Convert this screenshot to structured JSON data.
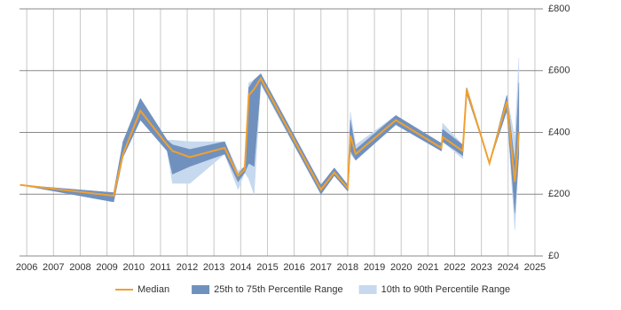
{
  "chart_data": {
    "type": "band-line",
    "x": [
      2005.75,
      2009.25,
      2009.6,
      2010.25,
      2011.25,
      2011.45,
      2012.1,
      2013.4,
      2013.9,
      2014.15,
      2014.3,
      2014.5,
      2014.75,
      2017.0,
      2017.5,
      2018.0,
      2018.1,
      2018.3,
      2019.8,
      2021.5,
      2021.55,
      2022.3,
      2022.45,
      2023.3,
      2023.95,
      2024.25,
      2024.4
    ],
    "series": [
      {
        "name": "Median",
        "color": "#f0a030",
        "values": [
          230,
          195,
          330,
          470,
          360,
          340,
          320,
          350,
          260,
          280,
          520,
          540,
          575,
          215,
          270,
          220,
          390,
          330,
          440,
          350,
          385,
          340,
          540,
          300,
          500,
          240,
          400
        ]
      }
    ],
    "bands": [
      {
        "name": "10th to 90th Percentile Range",
        "color": "#c6d9ee",
        "lower": [
          230,
          175,
          320,
          440,
          340,
          235,
          235,
          330,
          215,
          270,
          250,
          200,
          555,
          200,
          260,
          210,
          330,
          310,
          425,
          340,
          370,
          315,
          525,
          300,
          470,
          85,
          330
        ],
        "upper": [
          230,
          205,
          370,
          510,
          375,
          375,
          370,
          370,
          275,
          290,
          560,
          570,
          590,
          230,
          285,
          230,
          465,
          360,
          455,
          365,
          430,
          360,
          545,
          300,
          520,
          380,
          640
        ]
      },
      {
        "name": "25th to 75th Percentile Range",
        "color": "#7091be",
        "lower": [
          230,
          175,
          320,
          440,
          340,
          265,
          290,
          330,
          240,
          270,
          300,
          290,
          560,
          200,
          260,
          210,
          340,
          310,
          425,
          340,
          370,
          325,
          525,
          300,
          470,
          140,
          330
        ],
        "upper": [
          230,
          205,
          370,
          510,
          375,
          360,
          345,
          370,
          265,
          290,
          545,
          570,
          590,
          230,
          285,
          230,
          440,
          345,
          455,
          365,
          410,
          360,
          545,
          300,
          520,
          300,
          560
        ]
      }
    ],
    "xlim": [
      2005.73,
      2025.3
    ],
    "xticks": [
      2006,
      2007,
      2008,
      2009,
      2010,
      2011,
      2012,
      2013,
      2014,
      2015,
      2016,
      2017,
      2018,
      2019,
      2020,
      2021,
      2022,
      2023,
      2024,
      2025
    ],
    "ylim": [
      0,
      800
    ],
    "yticks": [
      {
        "value": 0,
        "label": "£0"
      },
      {
        "value": 200,
        "label": "£200"
      },
      {
        "value": 400,
        "label": "£400"
      },
      {
        "value": 600,
        "label": "£600"
      },
      {
        "value": 800,
        "label": "£800"
      }
    ],
    "grid": true
  }
}
